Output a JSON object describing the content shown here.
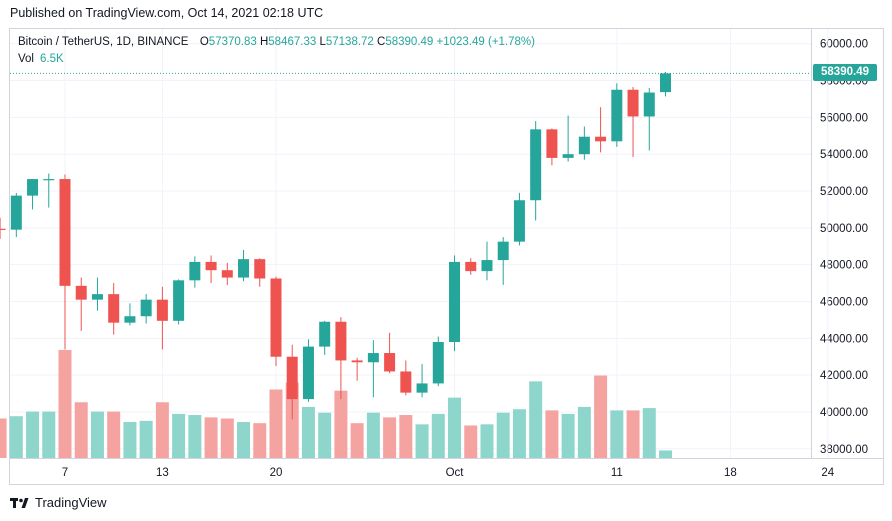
{
  "header": {
    "published": "Published on TradingView.com, Oct 14, 2021 02:18 UTC"
  },
  "legend": {
    "symbol": "Bitcoin / TetherUS, 1D, BINANCE",
    "open_label": "O",
    "open": "57370.83",
    "high_label": "H",
    "high": "58467.33",
    "low_label": "L",
    "low": "57138.72",
    "close_label": "C",
    "close": "58390.49",
    "change": "+1023.49 (+1.78%)",
    "vol_label": "Vol",
    "vol": "6.5K"
  },
  "last_price_badge": "58390.49",
  "footer": {
    "brand": "TradingView"
  },
  "colors": {
    "up": "#26a69a",
    "down": "#ef5350",
    "up_vol": "#8ed6cc",
    "down_vol": "#f5a3a1",
    "grid": "#f0f3fa",
    "axis_text": "#131722"
  },
  "chart_data": {
    "type": "candlestick",
    "timeframe": "1D",
    "ylim": [
      37500,
      60800
    ],
    "y_ticks": [
      "38000.00",
      "40000.00",
      "42000.00",
      "44000.00",
      "46000.00",
      "48000.00",
      "50000.00",
      "52000.00",
      "54000.00",
      "56000.00",
      "58000.00",
      "60000.00"
    ],
    "x_tick_labels": [
      {
        "label": "7",
        "date": "2021-09-07"
      },
      {
        "label": "13",
        "date": "2021-09-13"
      },
      {
        "label": "20",
        "date": "2021-09-20"
      },
      {
        "label": "Oct",
        "date": "2021-10-01"
      },
      {
        "label": "11",
        "date": "2021-10-11"
      },
      {
        "label": "18",
        "date": "2021-10-18"
      },
      {
        "label": "24",
        "date": "2021-10-24"
      }
    ],
    "last_price": 58390.49,
    "candles": [
      {
        "date": "2021-09-03",
        "o": 49950,
        "h": 50550,
        "l": 49400,
        "c": 49900,
        "v": 3.4
      },
      {
        "date": "2021-09-04",
        "o": 49900,
        "h": 51900,
        "l": 49500,
        "c": 51750,
        "v": 3.6
      },
      {
        "date": "2021-09-05",
        "o": 51750,
        "h": 52650,
        "l": 51000,
        "c": 52650,
        "v": 4.0
      },
      {
        "date": "2021-09-06",
        "o": 52650,
        "h": 52950,
        "l": 51100,
        "c": 52650,
        "v": 4.0
      },
      {
        "date": "2021-09-07",
        "o": 52650,
        "h": 52900,
        "l": 43400,
        "c": 46850,
        "v": 9.3
      },
      {
        "date": "2021-09-08",
        "o": 46850,
        "h": 47300,
        "l": 44400,
        "c": 46100,
        "v": 4.8
      },
      {
        "date": "2021-09-09",
        "o": 46100,
        "h": 47300,
        "l": 45500,
        "c": 46400,
        "v": 4.0
      },
      {
        "date": "2021-09-10",
        "o": 46400,
        "h": 47000,
        "l": 44200,
        "c": 44850,
        "v": 4.0
      },
      {
        "date": "2021-09-11",
        "o": 44850,
        "h": 45900,
        "l": 44700,
        "c": 45200,
        "v": 3.1
      },
      {
        "date": "2021-09-12",
        "o": 45200,
        "h": 46400,
        "l": 44800,
        "c": 46100,
        "v": 3.2
      },
      {
        "date": "2021-09-13",
        "o": 46100,
        "h": 46800,
        "l": 43400,
        "c": 44950,
        "v": 4.8
      },
      {
        "date": "2021-09-14",
        "o": 44950,
        "h": 47200,
        "l": 44750,
        "c": 47150,
        "v": 3.8
      },
      {
        "date": "2021-09-15",
        "o": 47150,
        "h": 48450,
        "l": 46750,
        "c": 48150,
        "v": 3.7
      },
      {
        "date": "2021-09-16",
        "o": 48150,
        "h": 48500,
        "l": 47000,
        "c": 47700,
        "v": 3.5
      },
      {
        "date": "2021-09-17",
        "o": 47700,
        "h": 48100,
        "l": 46900,
        "c": 47300,
        "v": 3.4
      },
      {
        "date": "2021-09-18",
        "o": 47300,
        "h": 48800,
        "l": 47100,
        "c": 48300,
        "v": 3.1
      },
      {
        "date": "2021-09-19",
        "o": 48300,
        "h": 48350,
        "l": 46800,
        "c": 47250,
        "v": 3.0
      },
      {
        "date": "2021-09-20",
        "o": 47250,
        "h": 47350,
        "l": 42500,
        "c": 43000,
        "v": 5.9
      },
      {
        "date": "2021-09-21",
        "o": 43000,
        "h": 43650,
        "l": 39600,
        "c": 40700,
        "v": 6.5
      },
      {
        "date": "2021-09-22",
        "o": 40700,
        "h": 43950,
        "l": 40550,
        "c": 43550,
        "v": 4.4
      },
      {
        "date": "2021-09-23",
        "o": 43550,
        "h": 44950,
        "l": 43100,
        "c": 44900,
        "v": 3.9
      },
      {
        "date": "2021-09-24",
        "o": 44900,
        "h": 45150,
        "l": 40700,
        "c": 42800,
        "v": 5.8
      },
      {
        "date": "2021-09-25",
        "o": 42800,
        "h": 42950,
        "l": 41700,
        "c": 42700,
        "v": 3.0
      },
      {
        "date": "2021-09-26",
        "o": 42700,
        "h": 43900,
        "l": 40800,
        "c": 43200,
        "v": 3.9
      },
      {
        "date": "2021-09-27",
        "o": 43200,
        "h": 44300,
        "l": 42100,
        "c": 42200,
        "v": 3.5
      },
      {
        "date": "2021-09-28",
        "o": 42200,
        "h": 42800,
        "l": 40900,
        "c": 41050,
        "v": 3.7
      },
      {
        "date": "2021-09-29",
        "o": 41050,
        "h": 42600,
        "l": 40800,
        "c": 41550,
        "v": 2.9
      },
      {
        "date": "2021-09-30",
        "o": 41550,
        "h": 44100,
        "l": 41400,
        "c": 43800,
        "v": 3.8
      },
      {
        "date": "2021-10-01",
        "o": 43800,
        "h": 48500,
        "l": 43300,
        "c": 48150,
        "v": 5.2
      },
      {
        "date": "2021-10-02",
        "o": 48150,
        "h": 48350,
        "l": 47450,
        "c": 47650,
        "v": 2.8
      },
      {
        "date": "2021-10-03",
        "o": 47650,
        "h": 49250,
        "l": 47150,
        "c": 48250,
        "v": 2.9
      },
      {
        "date": "2021-10-04",
        "o": 48250,
        "h": 49500,
        "l": 46900,
        "c": 49250,
        "v": 3.9
      },
      {
        "date": "2021-10-05",
        "o": 49250,
        "h": 51900,
        "l": 49050,
        "c": 51500,
        "v": 4.2
      },
      {
        "date": "2021-10-06",
        "o": 51500,
        "h": 55800,
        "l": 50400,
        "c": 55350,
        "v": 6.6
      },
      {
        "date": "2021-10-07",
        "o": 55350,
        "h": 55400,
        "l": 53400,
        "c": 53800,
        "v": 4.1
      },
      {
        "date": "2021-10-08",
        "o": 53800,
        "h": 56100,
        "l": 53600,
        "c": 54000,
        "v": 3.8
      },
      {
        "date": "2021-10-09",
        "o": 54000,
        "h": 55500,
        "l": 53700,
        "c": 54950,
        "v": 4.4
      },
      {
        "date": "2021-10-10",
        "o": 54950,
        "h": 56550,
        "l": 54100,
        "c": 54700,
        "v": 7.1
      },
      {
        "date": "2021-10-11",
        "o": 54700,
        "h": 57850,
        "l": 54400,
        "c": 57500,
        "v": 4.1
      },
      {
        "date": "2021-10-12",
        "o": 57500,
        "h": 57650,
        "l": 53850,
        "c": 56050,
        "v": 4.1
      },
      {
        "date": "2021-10-13",
        "o": 56050,
        "h": 57600,
        "l": 54200,
        "c": 57350,
        "v": 4.3
      },
      {
        "date": "2021-10-14",
        "o": 57370.83,
        "h": 58467.33,
        "l": 57138.72,
        "c": 58390.49,
        "v": 0.65
      }
    ]
  }
}
